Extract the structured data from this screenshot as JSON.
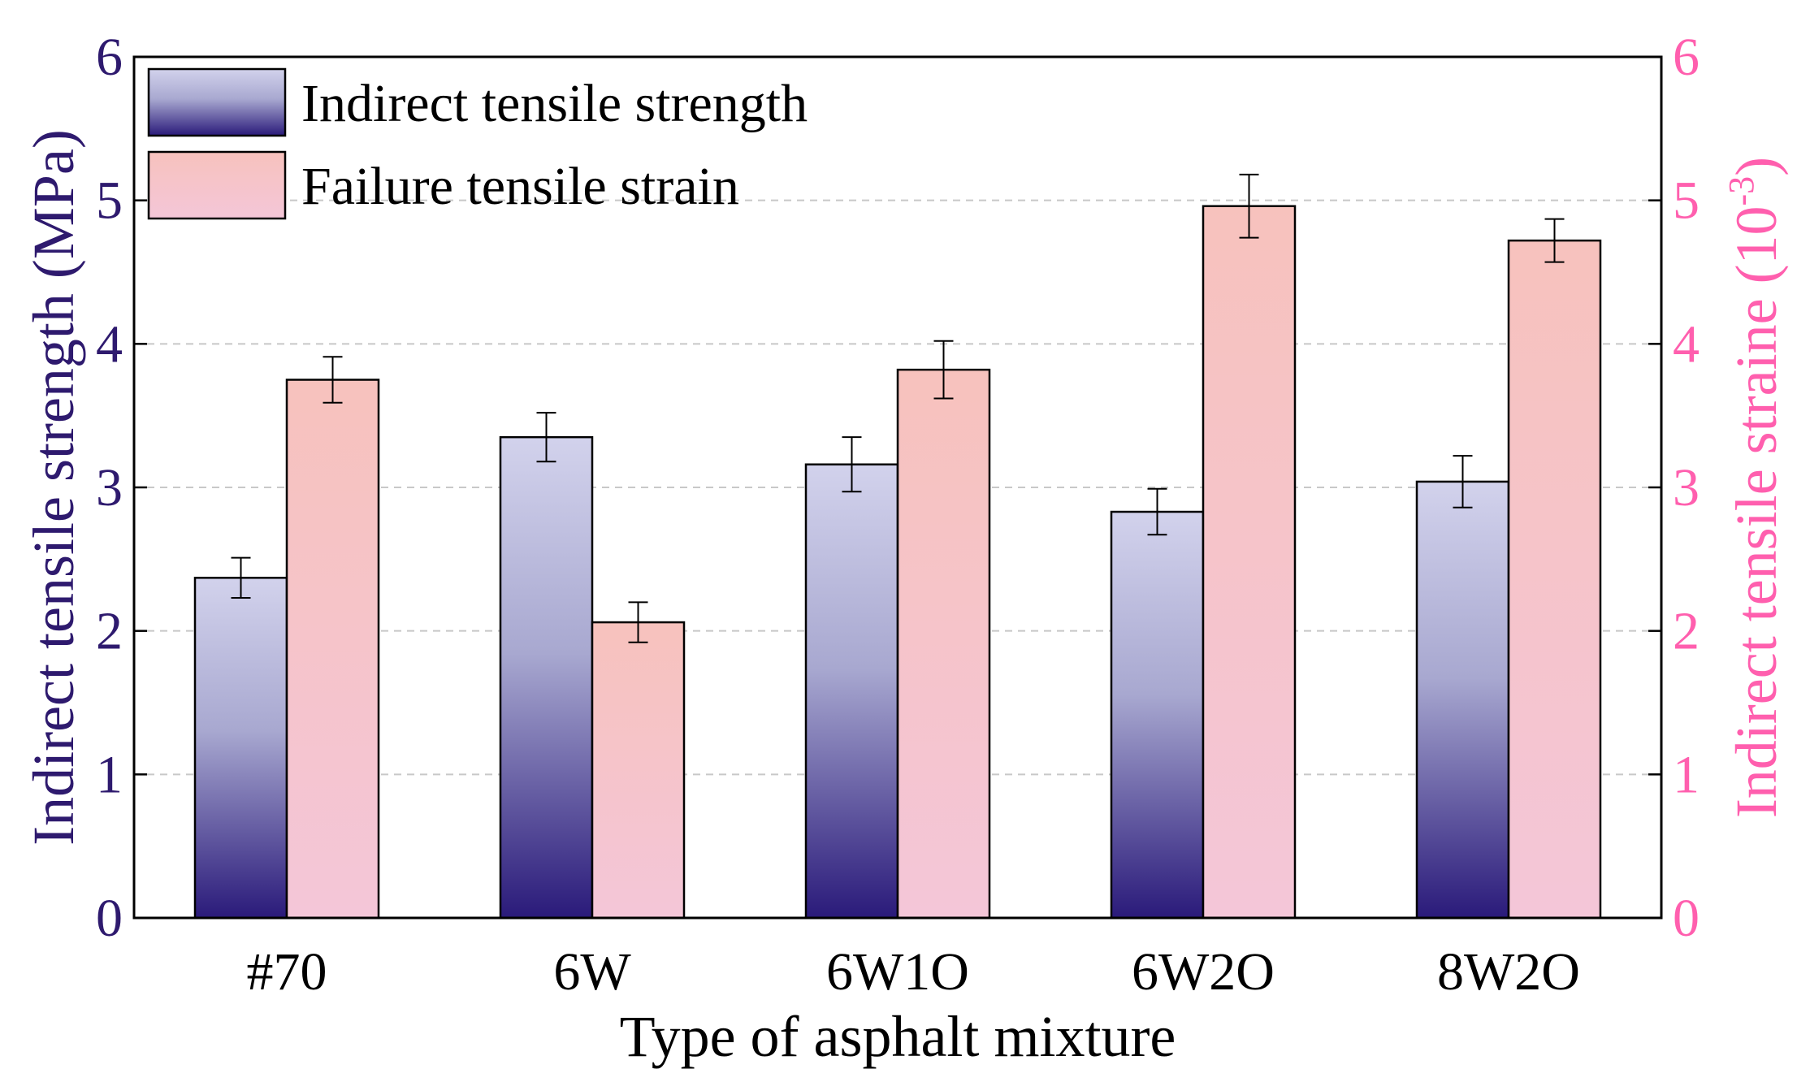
{
  "chart_data": {
    "type": "bar",
    "categories": [
      "#70",
      "6W",
      "6W1O",
      "6W2O",
      "8W2O"
    ],
    "series": [
      {
        "name": "Indirect tensile strength",
        "axis": "left",
        "values": [
          2.37,
          3.35,
          3.16,
          2.83,
          3.04
        ],
        "errors": [
          0.14,
          0.17,
          0.19,
          0.16,
          0.18
        ]
      },
      {
        "name": "Failure tensile strain",
        "axis": "right",
        "values": [
          3.75,
          2.06,
          3.82,
          4.96,
          4.72
        ],
        "errors": [
          0.16,
          0.14,
          0.2,
          0.22,
          0.15
        ]
      }
    ],
    "xlabel": "Type of asphalt mixture",
    "ylabel_left": "Indirect tensile strength (MPa)",
    "ylabel_right_main": "Indirect tensile straine (10",
    "ylabel_right_sup": "-3",
    "ylabel_right_end": ")",
    "ylim_left": [
      0,
      6
    ],
    "ylim_right": [
      0,
      6
    ],
    "yticks_left": [
      "0",
      "1",
      "2",
      "3",
      "4",
      "5",
      "6"
    ],
    "yticks_right": [
      "0",
      "1",
      "2",
      "3",
      "4",
      "5",
      "6"
    ],
    "grid": "horizontal dashed",
    "legend_position": "top-left",
    "colors": {
      "left_axis": "#2e1a6e",
      "right_axis": "#ff5fae",
      "strength_top": "#d2d2ec",
      "strength_mid": "#a8a8d0",
      "strength_bottom": "#2a1a7a",
      "strain_top": "#f7c2bd",
      "strain_bottom": "#f4c6d8",
      "grid": "#c8c8c8",
      "frame": "#000000"
    }
  }
}
